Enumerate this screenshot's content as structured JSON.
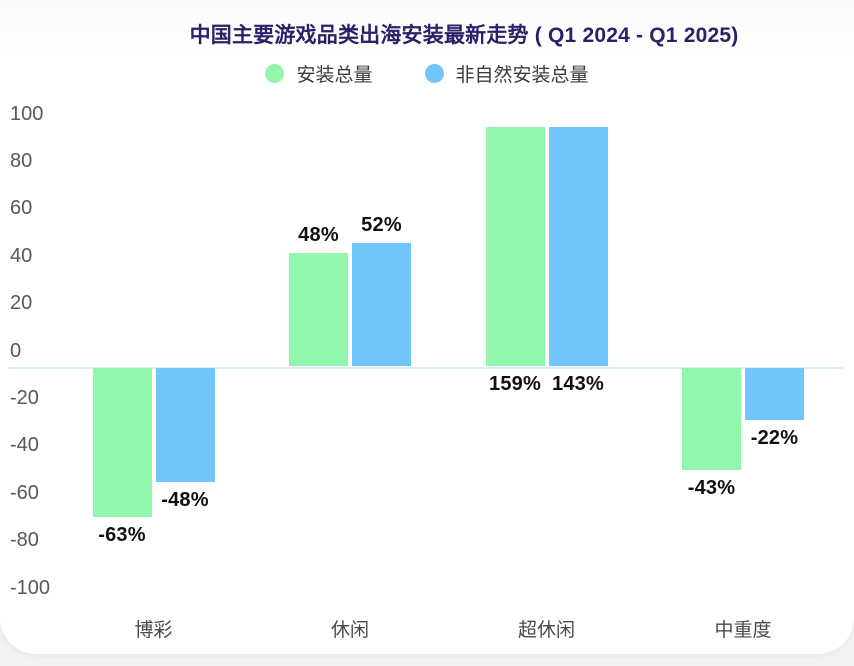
{
  "colors": {
    "title": "#2b2168",
    "axis_line": "#d8eafb",
    "value_label": "#101010",
    "tick_label": "#58585a",
    "category_label": "#4a4a4c",
    "legend_label": "#3c3c3e"
  },
  "chart_data": {
    "type": "bar",
    "title": "中国主要游戏品类出海安装最新走势 ( Q1 2024 - Q1 2025)",
    "categories": [
      "博彩",
      "休闲",
      "超休闲",
      "中重度"
    ],
    "series": [
      {
        "name": "安装总量",
        "color": "#90f6ac",
        "values": [
          -63,
          48,
          159,
          -43
        ],
        "labels": [
          "-63%",
          "48%",
          "159%",
          "-43%"
        ]
      },
      {
        "name": "非自然安装总量",
        "color": "#72c5f8",
        "values": [
          -48,
          52,
          143,
          -22
        ],
        "labels": [
          "-48%",
          "52%",
          "143%",
          "-22%"
        ]
      }
    ],
    "y_ticks": [
      100,
      80,
      60,
      40,
      20,
      0,
      -20,
      -40,
      -60,
      -80,
      -100
    ],
    "ylim": [
      -100,
      100
    ],
    "clip_display_max": 101,
    "unit_suffix": "%",
    "grid": false,
    "legend_position": "top",
    "clipped_note": "超休闲 bars are visually capped at the axis top; their true values are shown as labels below the zero line"
  }
}
